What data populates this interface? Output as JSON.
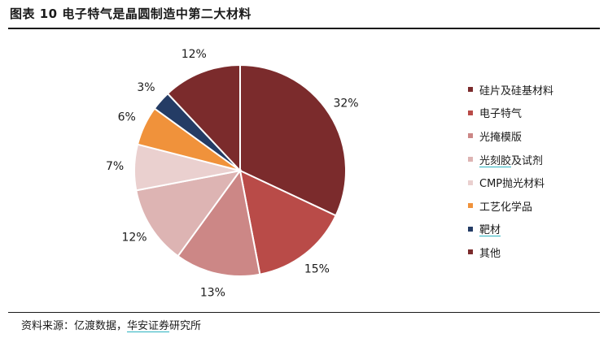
{
  "header": {
    "title": "图表 10 电子特气是晶圆制造中第二大材料"
  },
  "chart_data": {
    "type": "pie",
    "title": "图表 10 电子特气是晶圆制造中第二大材料",
    "categories": [
      "硅片及硅基材料",
      "电子特气",
      "光掩模版",
      "光刻胶及试剂",
      "CMP抛光材料",
      "工艺化学品",
      "靶材",
      "其他"
    ],
    "values": [
      32,
      15,
      13,
      12,
      7,
      6,
      3,
      12
    ],
    "value_labels": [
      "32%",
      "15%",
      "13%",
      "12%",
      "7%",
      "6%",
      "3%",
      "12%"
    ],
    "colors": [
      "#7b2b2c",
      "#b94b48",
      "#cc8786",
      "#ddb4b3",
      "#ead0cf",
      "#f0923b",
      "#243c65",
      "#7b2b2c"
    ],
    "legend_position": "right",
    "start_angle_deg": 0,
    "direction": "clockwise"
  },
  "legend": {
    "items": [
      {
        "label": "硅片及硅基材料",
        "color": "#7b2b2c"
      },
      {
        "label": "电子特气",
        "color": "#b94b48"
      },
      {
        "label": "光掩模版",
        "color": "#cc8786"
      },
      {
        "label_a": "光刻胶",
        "label_b": "及试剂",
        "color": "#ddb4b3"
      },
      {
        "label": "CMP抛光材料",
        "color": "#ead0cf"
      },
      {
        "label": "工艺化学品",
        "color": "#f0923b"
      },
      {
        "label": "靶材",
        "color": "#243c65"
      },
      {
        "label": "其他",
        "color": "#7b2b2c"
      }
    ]
  },
  "footer": {
    "source_prefix": "资料来源：亿渡数据，",
    "source_link": "华安证券",
    "source_suffix": "研究所"
  }
}
